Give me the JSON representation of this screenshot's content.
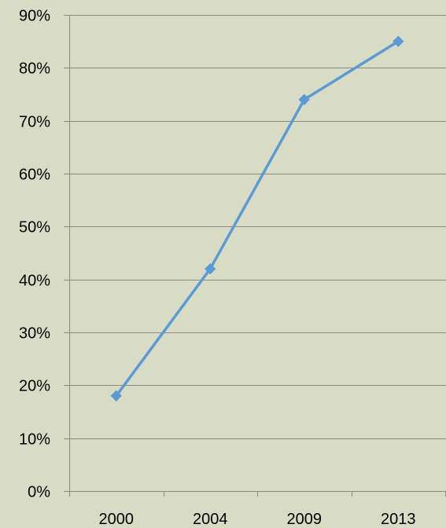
{
  "chart_data": {
    "type": "line",
    "title": "",
    "xlabel": "",
    "ylabel": "",
    "categories": [
      "2000",
      "2004",
      "2009",
      "2013"
    ],
    "series": [
      {
        "values": [
          18,
          42,
          74,
          85
        ],
        "color": "#5b9bd5",
        "marker": "diamond"
      }
    ],
    "ylim": [
      0,
      90
    ],
    "yticks": [
      0,
      10,
      20,
      30,
      40,
      50,
      60,
      70,
      80,
      90
    ],
    "ytick_labels": [
      "0%",
      "10%",
      "20%",
      "30%",
      "40%",
      "50%",
      "60%",
      "70%",
      "80%",
      "90%"
    ],
    "grid": true,
    "legend": "none"
  },
  "colors": {
    "background": "#d8dcc4",
    "gridline": "#8a8a80",
    "series": "#5b9bd5"
  }
}
